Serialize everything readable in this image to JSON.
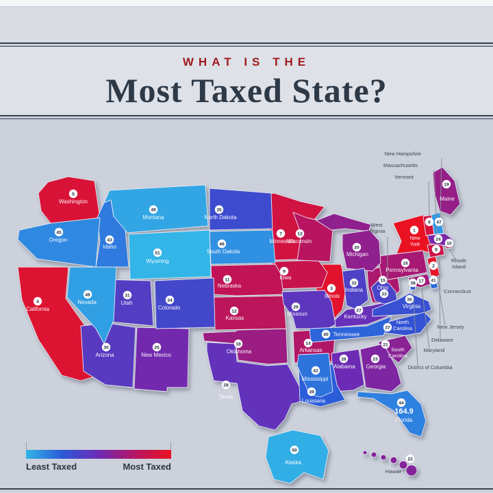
{
  "title": {
    "kicker": "WHAT IS THE",
    "main": "Most Taxed State?"
  },
  "legend": {
    "least_label": "Least Taxed",
    "most_label": "Most Taxed",
    "gradient": [
      "#33b5e8",
      "#2b59d8",
      "#6d2bb5",
      "#b51563",
      "#ea1222"
    ]
  },
  "badge": {
    "fill": "#ffffff",
    "number_color": "#1c2a3a"
  },
  "chart_data": {
    "type": "heatmap",
    "subtype": "us-choropleth",
    "title": "What is the Most Taxed State?",
    "encoding": "Each state shows its rank badge: 1 = most taxed (red) through 51 = least taxed (cyan); includes District of Columbia.",
    "legend": {
      "left": "Least Taxed",
      "right": "Most Taxed",
      "position": "bottom-left"
    },
    "states": [
      {
        "name": "New York",
        "rank": 1
      },
      {
        "name": "New Jersey",
        "rank": 2
      },
      {
        "name": "Illinois",
        "rank": 3
      },
      {
        "name": "California",
        "rank": 4
      },
      {
        "name": "Washington",
        "rank": 5
      },
      {
        "name": "Vermont",
        "rank": 6
      },
      {
        "name": "Minnesota",
        "rank": 7
      },
      {
        "name": "Connecticut",
        "rank": 8
      },
      {
        "name": "Iowa",
        "rank": 9
      },
      {
        "name": "Rhode Island",
        "rank": 10
      },
      {
        "name": "Nebraska",
        "rank": 11
      },
      {
        "name": "Kansas",
        "rank": 12
      },
      {
        "name": "Wisconsin",
        "rank": 13
      },
      {
        "name": "Arkansas",
        "rank": 14
      },
      {
        "name": "Ohio",
        "rank": 15
      },
      {
        "name": "Pennsylvania",
        "rank": 16
      },
      {
        "name": "Maryland",
        "rank": 17
      },
      {
        "name": "Oklahoma",
        "rank": 18
      },
      {
        "name": "Maine",
        "rank": 19
      },
      {
        "name": "Michigan",
        "rank": 20
      },
      {
        "name": "South Carolina",
        "rank": 21
      },
      {
        "name": "Hawaii",
        "rank": 22
      },
      {
        "name": "Georgia",
        "rank": 23
      },
      {
        "name": "Massachusetts",
        "rank": 24
      },
      {
        "name": "New Mexico",
        "rank": 25
      },
      {
        "name": "Alabama",
        "rank": 26
      },
      {
        "name": "Kentucky",
        "rank": 27
      },
      {
        "name": "Texas",
        "rank": 28
      },
      {
        "name": "Missouri",
        "rank": 29
      },
      {
        "name": "Arizona",
        "rank": 30
      },
      {
        "name": "Utah",
        "rank": 31
      },
      {
        "name": "Indiana",
        "rank": 32
      },
      {
        "name": "West Virginia",
        "rank": 33
      },
      {
        "name": "Colorado",
        "rank": 34
      },
      {
        "name": "North Dakota",
        "rank": 35
      },
      {
        "name": "Virginia",
        "rank": 36
      },
      {
        "name": "North Carolina",
        "rank": 37
      },
      {
        "name": "District of Columbia",
        "rank": 38
      },
      {
        "name": "Louisiana",
        "rank": 39
      },
      {
        "name": "Tennessee",
        "rank": 40
      },
      {
        "name": "Delaware",
        "rank": 41
      },
      {
        "name": "Mississippi",
        "rank": 42
      },
      {
        "name": "Idaho",
        "rank": 43
      },
      {
        "name": "Florida",
        "rank": 44,
        "value_label": "164.9"
      },
      {
        "name": "Oregon",
        "rank": 45
      },
      {
        "name": "South Dakota",
        "rank": 46
      },
      {
        "name": "New Hampshire",
        "rank": 47
      },
      {
        "name": "Nevada",
        "rank": 48
      },
      {
        "name": "Montana",
        "rank": 49
      },
      {
        "name": "Alaska",
        "rank": 50
      },
      {
        "name": "Wyoming",
        "rank": 51
      }
    ]
  }
}
